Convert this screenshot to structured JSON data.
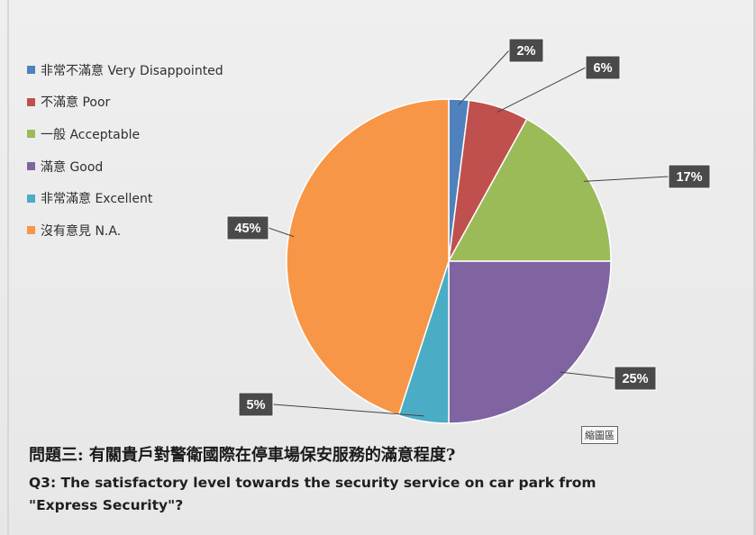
{
  "chart_data": {
    "type": "pie",
    "title": "問題三: 有關貴戶對警衛國際在停車場保安服務的滿意程度?",
    "subtitle": "Q3: The satisfactory level towards the security service on car park from \"Express Security\"?",
    "slices": [
      {
        "label": "非常不滿意 Very Disappointed",
        "value": 2,
        "display": "2%",
        "color": "#4f81bd"
      },
      {
        "label": "不滿意 Poor",
        "value": 6,
        "display": "6%",
        "color": "#c0504d"
      },
      {
        "label": "一般 Acceptable",
        "value": 17,
        "display": "17%",
        "color": "#9bbb59"
      },
      {
        "label": "滿意 Good",
        "value": 25,
        "display": "25%",
        "color": "#8064a2"
      },
      {
        "label": "非常滿意 Excellent",
        "value": 5,
        "display": "5%",
        "color": "#4bacc6"
      },
      {
        "label": "沒有意見 N.A.",
        "value": 45,
        "display": "45%",
        "color": "#f79646"
      }
    ],
    "legend_position": "top-left"
  },
  "stamp_text": "縮圖區"
}
